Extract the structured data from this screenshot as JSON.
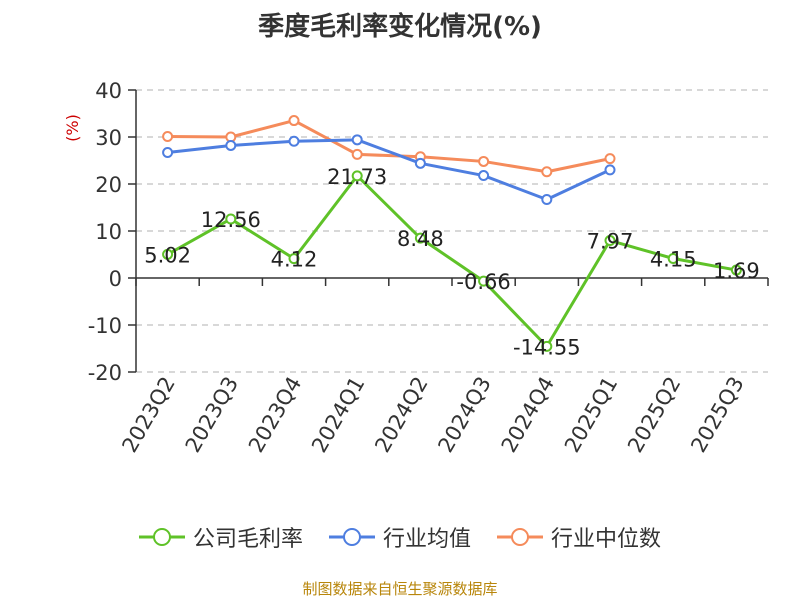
{
  "chart_data": {
    "type": "line",
    "title": "季度毛利率变化情况(%)",
    "ylabel": "(%)",
    "ylim": [
      -20,
      40
    ],
    "yticks": [
      -20,
      -10,
      0,
      10,
      20,
      30,
      40
    ],
    "grid": true,
    "legend_position": "bottom",
    "categories": [
      "2023Q2",
      "2023Q3",
      "2023Q4",
      "2024Q1",
      "2024Q2",
      "2024Q3",
      "2024Q4",
      "2025Q1",
      "2025Q2",
      "2025Q3"
    ],
    "series": [
      {
        "name": "公司毛利率",
        "color": "#5fc228",
        "values": [
          5.02,
          12.56,
          4.12,
          21.73,
          8.48,
          -0.66,
          -14.55,
          7.97,
          4.15,
          1.69
        ],
        "labels": [
          "5.02",
          "12.56",
          "4.12",
          "21.73",
          "8.48",
          "-0.66",
          "-14.55",
          "7.97",
          "4.15",
          "1.69"
        ]
      },
      {
        "name": "行业均值",
        "color": "#4e7ee0",
        "values": [
          26.7,
          28.2,
          29.1,
          29.4,
          24.4,
          21.8,
          16.7,
          23.0,
          null,
          null
        ]
      },
      {
        "name": "行业中位数",
        "color": "#f58b5b",
        "values": [
          30.1,
          30.0,
          33.5,
          26.3,
          25.8,
          24.8,
          22.6,
          25.4,
          null,
          null
        ]
      }
    ]
  },
  "source": "制图数据来自恒生聚源数据库"
}
